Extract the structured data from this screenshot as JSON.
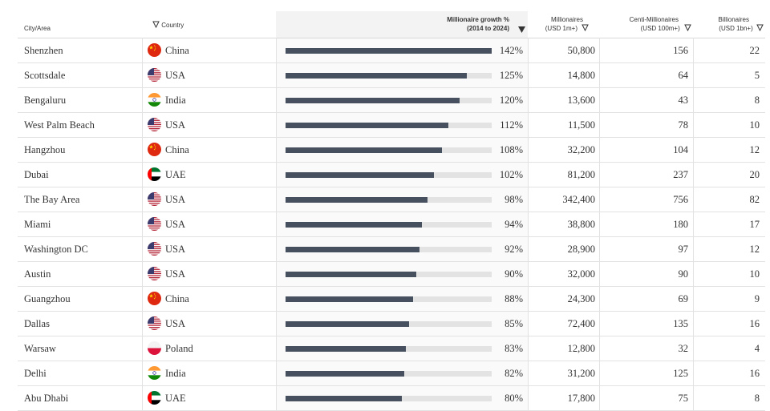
{
  "header": {
    "city": "City/Area",
    "country": "Country",
    "growth_line1": "Millionaire growth %",
    "growth_line2": "(2014 to 2024)",
    "millionaires_line1": "Millionaires",
    "millionaires_line2": "(USD 1m+)",
    "centi_line1": "Centi-Millionaires",
    "centi_line2": "(USD 100m+)",
    "billionaires_line1": "Billionaires",
    "billionaires_line2": "(USD 1bn+)"
  },
  "colors": {
    "bar_fill": "#46505f",
    "bar_track": "#e3e3e3"
  },
  "rows": [
    {
      "city": "Shenzhen",
      "country": "China",
      "flag": "china-flag-icon",
      "growth": "142%",
      "growth_value": 142,
      "millionaires": "50,800",
      "centi": "156",
      "billionaires": "22"
    },
    {
      "city": "Scottsdale",
      "country": "USA",
      "flag": "usa-flag-icon",
      "growth": "125%",
      "growth_value": 125,
      "millionaires": "14,800",
      "centi": "64",
      "billionaires": "5"
    },
    {
      "city": "Bengaluru",
      "country": "India",
      "flag": "india-flag-icon",
      "growth": "120%",
      "growth_value": 120,
      "millionaires": "13,600",
      "centi": "43",
      "billionaires": "8"
    },
    {
      "city": "West Palm Beach",
      "country": "USA",
      "flag": "usa-flag-icon",
      "growth": "112%",
      "growth_value": 112,
      "millionaires": "11,500",
      "centi": "78",
      "billionaires": "10"
    },
    {
      "city": "Hangzhou",
      "country": "China",
      "flag": "china-flag-icon",
      "growth": "108%",
      "growth_value": 108,
      "millionaires": "32,200",
      "centi": "104",
      "billionaires": "12"
    },
    {
      "city": "Dubai",
      "country": "UAE",
      "flag": "uae-flag-icon",
      "growth": "102%",
      "growth_value": 102,
      "millionaires": "81,200",
      "centi": "237",
      "billionaires": "20"
    },
    {
      "city": "The Bay Area",
      "country": "USA",
      "flag": "usa-flag-icon",
      "growth": "98%",
      "growth_value": 98,
      "millionaires": "342,400",
      "centi": "756",
      "billionaires": "82"
    },
    {
      "city": "Miami",
      "country": "USA",
      "flag": "usa-flag-icon",
      "growth": "94%",
      "growth_value": 94,
      "millionaires": "38,800",
      "centi": "180",
      "billionaires": "17"
    },
    {
      "city": "Washington DC",
      "country": "USA",
      "flag": "usa-flag-icon",
      "growth": "92%",
      "growth_value": 92,
      "millionaires": "28,900",
      "centi": "97",
      "billionaires": "12"
    },
    {
      "city": "Austin",
      "country": "USA",
      "flag": "usa-flag-icon",
      "growth": "90%",
      "growth_value": 90,
      "millionaires": "32,000",
      "centi": "90",
      "billionaires": "10"
    },
    {
      "city": "Guangzhou",
      "country": "China",
      "flag": "china-flag-icon",
      "growth": "88%",
      "growth_value": 88,
      "millionaires": "24,300",
      "centi": "69",
      "billionaires": "9"
    },
    {
      "city": "Dallas",
      "country": "USA",
      "flag": "usa-flag-icon",
      "growth": "85%",
      "growth_value": 85,
      "millionaires": "72,400",
      "centi": "135",
      "billionaires": "16"
    },
    {
      "city": "Warsaw",
      "country": "Poland",
      "flag": "poland-flag-icon",
      "growth": "83%",
      "growth_value": 83,
      "millionaires": "12,800",
      "centi": "32",
      "billionaires": "4"
    },
    {
      "city": "Delhi",
      "country": "India",
      "flag": "india-flag-icon",
      "growth": "82%",
      "growth_value": 82,
      "millionaires": "31,200",
      "centi": "125",
      "billionaires": "16"
    },
    {
      "city": "Abu Dhabi",
      "country": "UAE",
      "flag": "uae-flag-icon",
      "growth": "80%",
      "growth_value": 80,
      "millionaires": "17,800",
      "centi": "75",
      "billionaires": "8"
    }
  ]
}
